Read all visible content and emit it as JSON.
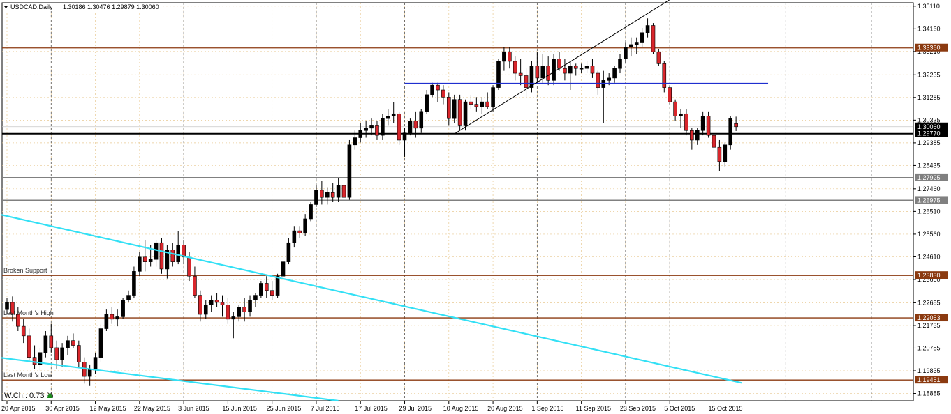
{
  "header": {
    "symbol": "USDCAD,Daily",
    "ohlc": "1.30186 1.30476 1.29879 1.30060"
  },
  "colors": {
    "bull": "#000000",
    "bear": "#d9262c",
    "grid": "#c8c8c8",
    "horizontal_level": "#8b3a10",
    "support_gray": "#808080",
    "channel": "#33e0f5",
    "blue_level": "#1f2fcf",
    "current_price_label": "#000000"
  },
  "watermark_change": {
    "label": "W.Ch.: 0.73 %",
    "icon": "triangle-up-icon",
    "color": "#1a8a1a"
  },
  "chart_data": {
    "type": "candlestick",
    "title": "USDCAD,Daily",
    "ylim": [
      1.1858,
      1.3525
    ],
    "y_ticks": [
      "1.35110",
      "1.34160",
      "1.33210",
      "1.32235",
      "1.31285",
      "1.30335",
      "1.29385",
      "1.28435",
      "1.27460",
      "1.26510",
      "1.25560",
      "1.24610",
      "1.23660",
      "1.22685",
      "1.21735",
      "1.20785",
      "1.19835",
      "1.18885"
    ],
    "x_ticks": [
      {
        "label": "20 Apr 2015",
        "index": 0
      },
      {
        "label": "30 Apr 2015",
        "index": 8
      },
      {
        "label": "12 May 2015",
        "index": 16
      },
      {
        "label": "22 May 2015",
        "index": 24
      },
      {
        "label": "3 Jun 2015",
        "index": 32
      },
      {
        "label": "15 Jun 2015",
        "index": 40
      },
      {
        "label": "25 Jun 2015",
        "index": 48
      },
      {
        "label": "7 Jul 2015",
        "index": 56
      },
      {
        "label": "17 Jul 2015",
        "index": 64
      },
      {
        "label": "29 Jul 2015",
        "index": 72
      },
      {
        "label": "10 Aug 2015",
        "index": 80
      },
      {
        "label": "20 Aug 2015",
        "index": 88
      },
      {
        "label": "1 Sep 2015",
        "index": 96
      },
      {
        "label": "11 Sep 2015",
        "index": 104
      },
      {
        "label": "23 Sep 2015",
        "index": 112
      },
      {
        "label": "5 Oct 2015",
        "index": 120
      },
      {
        "label": "15 Oct 2015",
        "index": 128
      }
    ],
    "x_count": 133,
    "vertical_gridlines_at": [
      8,
      32,
      56,
      72,
      96,
      112,
      120,
      128
    ],
    "candles": [
      [
        1.224,
        1.229,
        1.222,
        1.227
      ],
      [
        1.227,
        1.2295,
        1.219,
        1.222
      ],
      [
        1.222,
        1.225,
        1.215,
        1.217
      ],
      [
        1.217,
        1.22,
        1.21,
        1.213
      ],
      [
        1.213,
        1.216,
        1.202,
        1.204
      ],
      [
        1.204,
        1.209,
        1.199,
        1.201
      ],
      [
        1.201,
        1.208,
        1.1985,
        1.206
      ],
      [
        1.206,
        1.215,
        1.204,
        1.213
      ],
      [
        1.213,
        1.218,
        1.206,
        1.208
      ],
      [
        1.208,
        1.211,
        1.199,
        1.203
      ],
      [
        1.203,
        1.21,
        1.2,
        1.208
      ],
      [
        1.208,
        1.213,
        1.205,
        1.211
      ],
      [
        1.211,
        1.214,
        1.208,
        1.209
      ],
      [
        1.209,
        1.211,
        1.2,
        1.202
      ],
      [
        1.202,
        1.204,
        1.193,
        1.196
      ],
      [
        1.196,
        1.201,
        1.192,
        1.199
      ],
      [
        1.199,
        1.206,
        1.197,
        1.204
      ],
      [
        1.204,
        1.218,
        1.202,
        1.216
      ],
      [
        1.216,
        1.224,
        1.215,
        1.222
      ],
      [
        1.222,
        1.225,
        1.218,
        1.22
      ],
      [
        1.22,
        1.224,
        1.217,
        1.221
      ],
      [
        1.221,
        1.229,
        1.22,
        1.228
      ],
      [
        1.228,
        1.232,
        1.227,
        1.23
      ],
      [
        1.23,
        1.242,
        1.229,
        1.24
      ],
      [
        1.24,
        1.248,
        1.238,
        1.246
      ],
      [
        1.246,
        1.253,
        1.24,
        1.244
      ],
      [
        1.244,
        1.251,
        1.242,
        1.245
      ],
      [
        1.245,
        1.253,
        1.242,
        1.252
      ],
      [
        1.252,
        1.254,
        1.239,
        1.241
      ],
      [
        1.241,
        1.251,
        1.237,
        1.249
      ],
      [
        1.249,
        1.252,
        1.242,
        1.244
      ],
      [
        1.244,
        1.257,
        1.243,
        1.251
      ],
      [
        1.251,
        1.253,
        1.243,
        1.246
      ],
      [
        1.246,
        1.248,
        1.236,
        1.238
      ],
      [
        1.238,
        1.242,
        1.229,
        1.23
      ],
      [
        1.23,
        1.232,
        1.219,
        1.222
      ],
      [
        1.222,
        1.228,
        1.22,
        1.226
      ],
      [
        1.226,
        1.23,
        1.223,
        1.228
      ],
      [
        1.228,
        1.231,
        1.225,
        1.227
      ],
      [
        1.227,
        1.23,
        1.221,
        1.226
      ],
      [
        1.226,
        1.229,
        1.218,
        1.22
      ],
      [
        1.22,
        1.223,
        1.212,
        1.221
      ],
      [
        1.221,
        1.226,
        1.219,
        1.225
      ],
      [
        1.225,
        1.229,
        1.219,
        1.223
      ],
      [
        1.223,
        1.23,
        1.221,
        1.228
      ],
      [
        1.228,
        1.231,
        1.225,
        1.23
      ],
      [
        1.23,
        1.236,
        1.229,
        1.235
      ],
      [
        1.235,
        1.238,
        1.229,
        1.232
      ],
      [
        1.232,
        1.236,
        1.228,
        1.23
      ],
      [
        1.23,
        1.239,
        1.229,
        1.238
      ],
      [
        1.238,
        1.245,
        1.237,
        1.244
      ],
      [
        1.244,
        1.254,
        1.243,
        1.252
      ],
      [
        1.252,
        1.259,
        1.25,
        1.257
      ],
      [
        1.257,
        1.259,
        1.254,
        1.256
      ],
      [
        1.256,
        1.264,
        1.255,
        1.262
      ],
      [
        1.262,
        1.269,
        1.261,
        1.268
      ],
      [
        1.268,
        1.276,
        1.267,
        1.274
      ],
      [
        1.274,
        1.278,
        1.268,
        1.271
      ],
      [
        1.271,
        1.275,
        1.268,
        1.273
      ],
      [
        1.273,
        1.277,
        1.269,
        1.271
      ],
      [
        1.271,
        1.279,
        1.269,
        1.276
      ],
      [
        1.276,
        1.281,
        1.269,
        1.271
      ],
      [
        1.271,
        1.295,
        1.27,
        1.293
      ],
      [
        1.293,
        1.299,
        1.291,
        1.296
      ],
      [
        1.296,
        1.302,
        1.294,
        1.299
      ],
      [
        1.299,
        1.303,
        1.296,
        1.3
      ],
      [
        1.3,
        1.304,
        1.297,
        1.301
      ],
      [
        1.301,
        1.303,
        1.295,
        1.297
      ],
      [
        1.297,
        1.306,
        1.295,
        1.304
      ],
      [
        1.304,
        1.308,
        1.301,
        1.305
      ],
      [
        1.305,
        1.311,
        1.302,
        1.306
      ],
      [
        1.306,
        1.307,
        1.293,
        1.295
      ],
      [
        1.295,
        1.3,
        1.288,
        1.298
      ],
      [
        1.298,
        1.304,
        1.297,
        1.303
      ],
      [
        1.303,
        1.307,
        1.296,
        1.3
      ],
      [
        1.3,
        1.308,
        1.298,
        1.307
      ],
      [
        1.307,
        1.316,
        1.306,
        1.314
      ],
      [
        1.314,
        1.319,
        1.313,
        1.318
      ],
      [
        1.318,
        1.319,
        1.311,
        1.316
      ],
      [
        1.316,
        1.318,
        1.31,
        1.313
      ],
      [
        1.313,
        1.315,
        1.301,
        1.304
      ],
      [
        1.304,
        1.314,
        1.302,
        1.312
      ],
      [
        1.312,
        1.314,
        1.299,
        1.301
      ],
      [
        1.301,
        1.312,
        1.299,
        1.311
      ],
      [
        1.311,
        1.314,
        1.308,
        1.31
      ],
      [
        1.31,
        1.313,
        1.307,
        1.309
      ],
      [
        1.309,
        1.313,
        1.306,
        1.311
      ],
      [
        1.311,
        1.315,
        1.308,
        1.309
      ],
      [
        1.309,
        1.318,
        1.307,
        1.317
      ],
      [
        1.317,
        1.329,
        1.316,
        1.328
      ],
      [
        1.328,
        1.334,
        1.324,
        1.332
      ],
      [
        1.332,
        1.334,
        1.325,
        1.328
      ],
      [
        1.328,
        1.33,
        1.32,
        1.323
      ],
      [
        1.323,
        1.329,
        1.318,
        1.322
      ],
      [
        1.322,
        1.325,
        1.313,
        1.317
      ],
      [
        1.317,
        1.328,
        1.315,
        1.326
      ],
      [
        1.326,
        1.332,
        1.319,
        1.321
      ],
      [
        1.321,
        1.331,
        1.319,
        1.326
      ],
      [
        1.326,
        1.33,
        1.318,
        1.32
      ],
      [
        1.32,
        1.331,
        1.318,
        1.329
      ],
      [
        1.329,
        1.332,
        1.324,
        1.325
      ],
      [
        1.325,
        1.329,
        1.32,
        1.323
      ],
      [
        1.323,
        1.328,
        1.316,
        1.326
      ],
      [
        1.326,
        1.327,
        1.322,
        1.325
      ],
      [
        1.325,
        1.327,
        1.323,
        1.325
      ],
      [
        1.325,
        1.328,
        1.323,
        1.326
      ],
      [
        1.326,
        1.329,
        1.321,
        1.323
      ],
      [
        1.323,
        1.324,
        1.314,
        1.317
      ],
      [
        1.317,
        1.324,
        1.302,
        1.32
      ],
      [
        1.32,
        1.323,
        1.318,
        1.321
      ],
      [
        1.321,
        1.326,
        1.319,
        1.325
      ],
      [
        1.325,
        1.331,
        1.323,
        1.329
      ],
      [
        1.329,
        1.336,
        1.327,
        1.334
      ],
      [
        1.334,
        1.338,
        1.33,
        1.335
      ],
      [
        1.335,
        1.338,
        1.331,
        1.336
      ],
      [
        1.336,
        1.342,
        1.334,
        1.34
      ],
      [
        1.34,
        1.346,
        1.338,
        1.343
      ],
      [
        1.343,
        1.344,
        1.331,
        1.332
      ],
      [
        1.332,
        1.333,
        1.326,
        1.327
      ],
      [
        1.327,
        1.328,
        1.315,
        1.317
      ],
      [
        1.317,
        1.318,
        1.31,
        1.311
      ],
      [
        1.311,
        1.312,
        1.303,
        1.305
      ],
      [
        1.305,
        1.308,
        1.3,
        1.306
      ],
      [
        1.306,
        1.308,
        1.297,
        1.299
      ],
      [
        1.299,
        1.3,
        1.291,
        1.295
      ],
      [
        1.295,
        1.3,
        1.293,
        1.299
      ],
      [
        1.299,
        1.307,
        1.297,
        1.305
      ],
      [
        1.305,
        1.307,
        1.296,
        1.297
      ],
      [
        1.297,
        1.298,
        1.29,
        1.292
      ],
      [
        1.292,
        1.295,
        1.282,
        1.286
      ],
      [
        1.286,
        1.294,
        1.284,
        1.293
      ],
      [
        1.293,
        1.305,
        1.291,
        1.304
      ],
      [
        1.3019,
        1.3048,
        1.2988,
        1.3006
      ]
    ],
    "price_lines": [
      {
        "value": 1.3336,
        "label": "1.33360",
        "style": "horizontal_level"
      },
      {
        "value": 1.3006,
        "label": "1.30060",
        "style": "current"
      },
      {
        "value": 1.2977,
        "label": "1.29770",
        "style": "support_black"
      },
      {
        "value": 1.27925,
        "label": "1.27925",
        "style": "support_gray"
      },
      {
        "value": 1.26975,
        "label": "1.26975",
        "style": "support_gray"
      },
      {
        "value": 1.2383,
        "label": "1.23830",
        "style": "horizontal_level",
        "annotation": "Broken Support"
      },
      {
        "value": 1.22053,
        "label": "1.22053",
        "style": "horizontal_level",
        "annotation": "Last Month's High"
      },
      {
        "value": 1.19451,
        "label": "1.19451",
        "style": "horizontal_level",
        "annotation": "Last Month's Low"
      }
    ],
    "blue_level": {
      "value": 1.3187,
      "from_index": 72,
      "to_index": 133
    },
    "trendline": {
      "from": [
        81,
        1.2976
      ],
      "to": [
        125,
        1.361
      ]
    },
    "channel_upper": {
      "from": [
        0,
        1.2637
      ],
      "to": [
        133,
        1.1933
      ]
    },
    "channel_lower": {
      "from": [
        0,
        1.2038
      ],
      "to": [
        60,
        1.1858
      ]
    }
  }
}
